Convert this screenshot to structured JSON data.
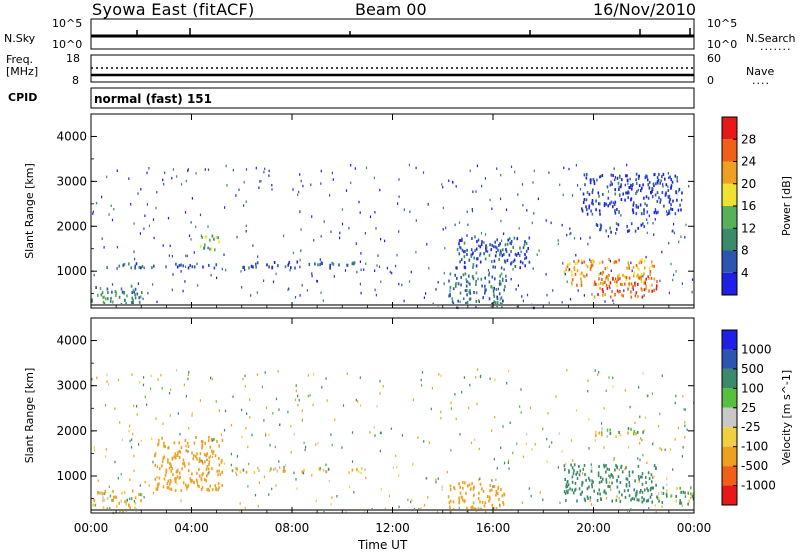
{
  "header": {
    "radar": "Syowa East (fitACF)",
    "beam": "Beam 00",
    "date": "16/Nov/2010"
  },
  "status_panels": {
    "nsky_label": "N.Sky",
    "nsky_ticks": [
      "10^5",
      "10^0"
    ],
    "nsearch_label": "N.Search",
    "nsearch_ticks": [
      "10^5",
      "10^0"
    ],
    "freq_label": "Freq.",
    "freq_unit": "[MHz]",
    "freq_ticks": [
      "18",
      "8"
    ],
    "nave_label": "Nave",
    "nave_ticks": [
      "60",
      "0"
    ],
    "cpid_label": "CPID",
    "cpid_value": "normal (fast) 151"
  },
  "time_axis": {
    "title": "Time UT",
    "ticks": [
      "00:00",
      "04:00",
      "08:00",
      "12:00",
      "16:00",
      "20:00",
      "00:00"
    ]
  },
  "colors": {
    "power": [
      "#1f1fe6",
      "#2b55b0",
      "#3c8a6a",
      "#58b05a",
      "#f0e030",
      "#f0a020",
      "#f06018",
      "#e81818"
    ],
    "velocity": [
      "#e81818",
      "#f06018",
      "#f0a020",
      "#f0d040",
      "#c8c8c8",
      "#58c040",
      "#3c8a6a",
      "#2b55b0",
      "#1f1fe6"
    ]
  },
  "chart_data": [
    {
      "type": "heatmap",
      "title": "Power",
      "xlabel": "Time UT",
      "ylabel": "Slant Range [km]",
      "x_ticks": [
        "00:00",
        "04:00",
        "08:00",
        "12:00",
        "16:00",
        "20:00",
        "00:00"
      ],
      "xlim": [
        0,
        24
      ],
      "y_ticks": [
        1000,
        2000,
        3000,
        4000
      ],
      "ylim": [
        180,
        4500
      ],
      "colorbar_label": "Power [dB]",
      "colorbar_ticks": [
        4,
        8,
        12,
        16,
        20,
        24,
        28
      ],
      "colorbar_range": [
        0,
        32
      ],
      "regions": [
        {
          "t0": 0.0,
          "t1": 2.0,
          "r0": 250,
          "r1": 700,
          "v": 10
        },
        {
          "t0": 0.0,
          "t1": 5.0,
          "r0": 1100,
          "r1": 1200,
          "v": 6
        },
        {
          "t0": 4.3,
          "t1": 5.1,
          "r0": 1500,
          "r1": 1850,
          "v": 14
        },
        {
          "t0": 6.0,
          "t1": 10.5,
          "r0": 1100,
          "r1": 1250,
          "v": 6
        },
        {
          "t0": 14.2,
          "t1": 16.5,
          "r0": 250,
          "r1": 1000,
          "v": 8
        },
        {
          "t0": 14.5,
          "t1": 17.5,
          "r0": 1100,
          "r1": 1800,
          "v": 6
        },
        {
          "t0": 18.8,
          "t1": 22.5,
          "r0": 700,
          "r1": 1300,
          "v": 22
        },
        {
          "t0": 20.0,
          "t1": 22.5,
          "r0": 450,
          "r1": 900,
          "v": 26
        },
        {
          "t0": 20.0,
          "t1": 22.0,
          "r0": 1900,
          "r1": 2100,
          "v": 6
        },
        {
          "t0": 19.5,
          "t1": 23.5,
          "r0": 2300,
          "r1": 3200,
          "v": 4
        }
      ]
    },
    {
      "type": "heatmap",
      "title": "Velocity",
      "xlabel": "Time UT",
      "ylabel": "Slant Range [km]",
      "x_ticks": [
        "00:00",
        "04:00",
        "08:00",
        "12:00",
        "16:00",
        "20:00",
        "00:00"
      ],
      "xlim": [
        0,
        24
      ],
      "y_ticks": [
        1000,
        2000,
        3000,
        4000
      ],
      "ylim": [
        180,
        4500
      ],
      "colorbar_label": "Velocity [m s^-1]",
      "colorbar_ticks": [
        1000,
        500,
        100,
        25,
        -25,
        -100,
        -500,
        -1000
      ],
      "regions": [
        {
          "t0": 0.0,
          "t1": 2.0,
          "r0": 250,
          "r1": 700,
          "v": -100
        },
        {
          "t0": 2.5,
          "t1": 5.2,
          "r0": 700,
          "r1": 1900,
          "v": -300
        },
        {
          "t0": 5.5,
          "t1": 11.0,
          "r0": 1100,
          "r1": 1200,
          "v": 0
        },
        {
          "t0": 14.2,
          "t1": 16.5,
          "r0": 250,
          "r1": 900,
          "v": -300
        },
        {
          "t0": 18.8,
          "t1": 22.5,
          "r0": 450,
          "r1": 1300,
          "v": 300
        },
        {
          "t0": 20.0,
          "t1": 22.0,
          "r0": 1900,
          "r1": 2100,
          "v": 0
        },
        {
          "t0": 22.5,
          "t1": 24.0,
          "r0": 400,
          "r1": 800,
          "v": 100
        }
      ]
    }
  ]
}
